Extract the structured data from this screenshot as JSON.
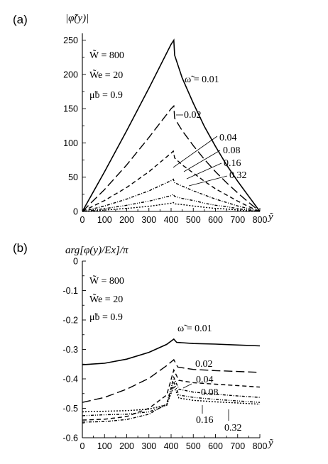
{
  "chart_data": [
    {
      "type": "line",
      "panel_label": "(a)",
      "ylabel": "|φ̃(y)|",
      "xlabel": "ỹ",
      "xlim": [
        0,
        800
      ],
      "ylim": [
        0,
        260
      ],
      "x_ticks": [
        0,
        100,
        200,
        300,
        400,
        500,
        600,
        700,
        800
      ],
      "y_ticks": [
        0,
        50,
        100,
        150,
        200,
        250
      ],
      "parameters": [
        "W̃ = 800",
        "W̃e = 20",
        "μ̃b = 0.9"
      ],
      "series": [
        {
          "name": "ω̃ = 0.01",
          "dash": "solid",
          "points": [
            [
              0,
              0
            ],
            [
              100,
              58
            ],
            [
              200,
              118
            ],
            [
              300,
              180
            ],
            [
              400,
              244
            ],
            [
              412,
              250
            ],
            [
              416,
              228
            ],
            [
              450,
              195
            ],
            [
              500,
              158
            ],
            [
              550,
              124
            ],
            [
              600,
              95
            ],
            [
              650,
              68
            ],
            [
              700,
              44
            ],
            [
              750,
              22
            ],
            [
              800,
              0
            ]
          ]
        },
        {
          "name": "0.02",
          "dash": "12,5",
          "points": [
            [
              0,
              0
            ],
            [
              100,
              32
            ],
            [
              200,
              68
            ],
            [
              300,
              108
            ],
            [
              400,
              150
            ],
            [
              412,
              154
            ],
            [
              416,
              136
            ],
            [
              450,
              118
            ],
            [
              500,
              96
            ],
            [
              550,
              76
            ],
            [
              600,
              58
            ],
            [
              650,
              42
            ],
            [
              700,
              27
            ],
            [
              750,
              13
            ],
            [
              800,
              0
            ]
          ]
        },
        {
          "name": "0.04",
          "dash": "6,4",
          "points": [
            [
              0,
              0
            ],
            [
              100,
              16
            ],
            [
              200,
              35
            ],
            [
              300,
              58
            ],
            [
              400,
              85
            ],
            [
              410,
              88
            ],
            [
              416,
              78
            ],
            [
              450,
              68
            ],
            [
              500,
              56
            ],
            [
              550,
              44
            ],
            [
              600,
              33
            ],
            [
              650,
              24
            ],
            [
              700,
              15
            ],
            [
              750,
              7
            ],
            [
              800,
              0
            ]
          ]
        },
        {
          "name": "0.08",
          "dash": "4,2,1,2",
          "points": [
            [
              0,
              0
            ],
            [
              100,
              8
            ],
            [
              200,
              18
            ],
            [
              300,
              30
            ],
            [
              400,
              45
            ],
            [
              410,
              47
            ],
            [
              416,
              42
            ],
            [
              450,
              37
            ],
            [
              500,
              30
            ],
            [
              550,
              24
            ],
            [
              600,
              18
            ],
            [
              650,
              13
            ],
            [
              700,
              8
            ],
            [
              750,
              4
            ],
            [
              800,
              0
            ]
          ]
        },
        {
          "name": "0.16",
          "dash": "4,2,1,2,1,2",
          "points": [
            [
              0,
              0
            ],
            [
              100,
              4
            ],
            [
              200,
              9
            ],
            [
              300,
              15
            ],
            [
              400,
              23
            ],
            [
              410,
              25
            ],
            [
              416,
              22
            ],
            [
              450,
              19
            ],
            [
              500,
              16
            ],
            [
              550,
              12
            ],
            [
              600,
              9
            ],
            [
              650,
              7
            ],
            [
              700,
              4
            ],
            [
              750,
              2
            ],
            [
              800,
              0
            ]
          ]
        },
        {
          "name": "0.32",
          "dash": "2,2",
          "points": [
            [
              0,
              0
            ],
            [
              100,
              2
            ],
            [
              200,
              4.5
            ],
            [
              300,
              7.5
            ],
            [
              400,
              12
            ],
            [
              410,
              13
            ],
            [
              416,
              11
            ],
            [
              450,
              10
            ],
            [
              500,
              8
            ],
            [
              550,
              6
            ],
            [
              600,
              4.5
            ],
            [
              650,
              3.5
            ],
            [
              700,
              2
            ],
            [
              750,
              1
            ],
            [
              800,
              0
            ]
          ]
        }
      ],
      "series_labels": [
        "ω̃ = 0.01",
        "0.02",
        "0.04",
        "0.08",
        "0.16",
        "0.32"
      ]
    },
    {
      "type": "line",
      "panel_label": "(b)",
      "ylabel": "arg[φ(y)/Ex]/π",
      "xlabel": "ỹ",
      "xlim": [
        0,
        800
      ],
      "ylim": [
        -0.6,
        0
      ],
      "x_ticks": [
        0,
        100,
        200,
        300,
        400,
        500,
        600,
        700,
        800
      ],
      "y_ticks": [
        0,
        -0.1,
        -0.2,
        -0.3,
        -0.4,
        -0.5,
        -0.6
      ],
      "y_tick_labels": [
        "0",
        "-0.1",
        "-0.2",
        "-0.3",
        "-0.4",
        "-0.5",
        "-0.6"
      ],
      "parameters": [
        "W̃ = 800",
        "W̃e = 20",
        "μ̃b = 0.9"
      ],
      "series": [
        {
          "name": "ω̃ = 0.01",
          "dash": "solid",
          "points": [
            [
              0,
              -0.352
            ],
            [
              100,
              -0.347
            ],
            [
              200,
              -0.333
            ],
            [
              300,
              -0.31
            ],
            [
              380,
              -0.283
            ],
            [
              412,
              -0.265
            ],
            [
              425,
              -0.276
            ],
            [
              500,
              -0.28
            ],
            [
              600,
              -0.282
            ],
            [
              700,
              -0.285
            ],
            [
              800,
              -0.288
            ]
          ]
        },
        {
          "name": "0.02",
          "dash": "12,5",
          "points": [
            [
              0,
              -0.48
            ],
            [
              100,
              -0.463
            ],
            [
              200,
              -0.435
            ],
            [
              300,
              -0.398
            ],
            [
              380,
              -0.355
            ],
            [
              412,
              -0.335
            ],
            [
              430,
              -0.36
            ],
            [
              500,
              -0.368
            ],
            [
              600,
              -0.372
            ],
            [
              700,
              -0.375
            ],
            [
              800,
              -0.378
            ]
          ]
        },
        {
          "name": "0.04",
          "dash": "6,4",
          "points": [
            [
              0,
              -0.54
            ],
            [
              100,
              -0.537
            ],
            [
              200,
              -0.528
            ],
            [
              300,
              -0.5
            ],
            [
              380,
              -0.455
            ],
            [
              412,
              -0.37
            ],
            [
              435,
              -0.405
            ],
            [
              500,
              -0.413
            ],
            [
              600,
              -0.418
            ],
            [
              700,
              -0.423
            ],
            [
              800,
              -0.428
            ]
          ]
        },
        {
          "name": "0.08",
          "dash": "4,2,1,2",
          "points": [
            [
              0,
              -0.547
            ],
            [
              100,
              -0.545
            ],
            [
              200,
              -0.538
            ],
            [
              300,
              -0.52
            ],
            [
              380,
              -0.485
            ],
            [
              412,
              -0.395
            ],
            [
              435,
              -0.435
            ],
            [
              500,
              -0.445
            ],
            [
              600,
              -0.452
            ],
            [
              700,
              -0.458
            ],
            [
              800,
              -0.463
            ]
          ]
        },
        {
          "name": "0.16",
          "dash": "4,2,1,2,1,2",
          "points": [
            [
              0,
              -0.525
            ],
            [
              100,
              -0.522
            ],
            [
              200,
              -0.52
            ],
            [
              300,
              -0.512
            ],
            [
              380,
              -0.49
            ],
            [
              412,
              -0.41
            ],
            [
              435,
              -0.455
            ],
            [
              500,
              -0.463
            ],
            [
              600,
              -0.47
            ],
            [
              700,
              -0.475
            ],
            [
              800,
              -0.48
            ]
          ]
        },
        {
          "name": "0.32",
          "dash": "2,2",
          "points": [
            [
              0,
              -0.512
            ],
            [
              100,
              -0.51
            ],
            [
              200,
              -0.508
            ],
            [
              300,
              -0.503
            ],
            [
              380,
              -0.488
            ],
            [
              412,
              -0.425
            ],
            [
              435,
              -0.465
            ],
            [
              500,
              -0.473
            ],
            [
              600,
              -0.478
            ],
            [
              700,
              -0.482
            ],
            [
              800,
              -0.486
            ]
          ]
        }
      ],
      "series_labels": [
        "ω̃ = 0.01",
        "0.02",
        "0.04",
        "0.08",
        "0.16",
        "0.32"
      ]
    }
  ]
}
